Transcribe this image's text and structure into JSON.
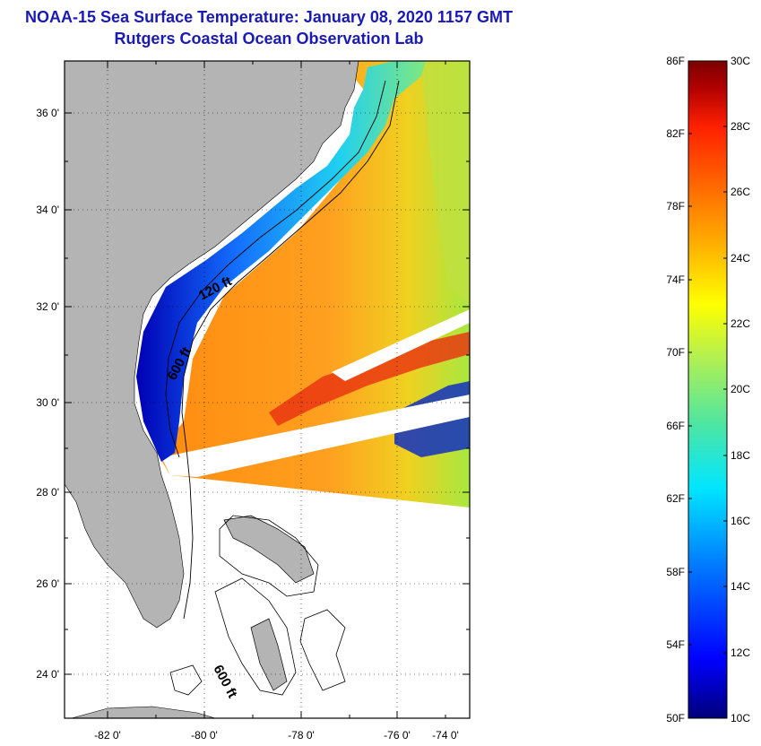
{
  "header": {
    "title": "NOAA-15 Sea Surface Temperature:  January 08, 2020 1157 GMT",
    "subtitle": "Rutgers Coastal Ocean Observation Lab"
  },
  "map": {
    "lat_ticks": [
      "36 0'",
      "34 0'",
      "32 0'",
      "30 0'",
      "28 0'",
      "26 0'",
      "24 0'"
    ],
    "lon_ticks": [
      "-82 0'",
      "-80 0'",
      "-78 0'",
      "-76 0'",
      "-74 0'"
    ],
    "contour_labels": [
      "120 ft",
      "600 ft",
      "600 ft"
    ],
    "colors": {
      "land": "#b4b4b4",
      "cloud": "#ffffff",
      "frame": "#000000"
    }
  },
  "colorbar": {
    "fahrenheit_labels": [
      "86F",
      "82F",
      "78F",
      "74F",
      "70F",
      "66F",
      "62F",
      "58F",
      "54F",
      "50F"
    ],
    "celsius_labels": [
      "30C",
      "28C",
      "26C",
      "24C",
      "22C",
      "20C",
      "18C",
      "16C",
      "14C",
      "12C",
      "10C"
    ],
    "colors": [
      "#00007a",
      "#0000ff",
      "#0070ff",
      "#00e6ff",
      "#50e6a0",
      "#b4f050",
      "#ffff00",
      "#ffb000",
      "#ff7000",
      "#ff2000",
      "#b00000",
      "#7a0000"
    ]
  }
}
